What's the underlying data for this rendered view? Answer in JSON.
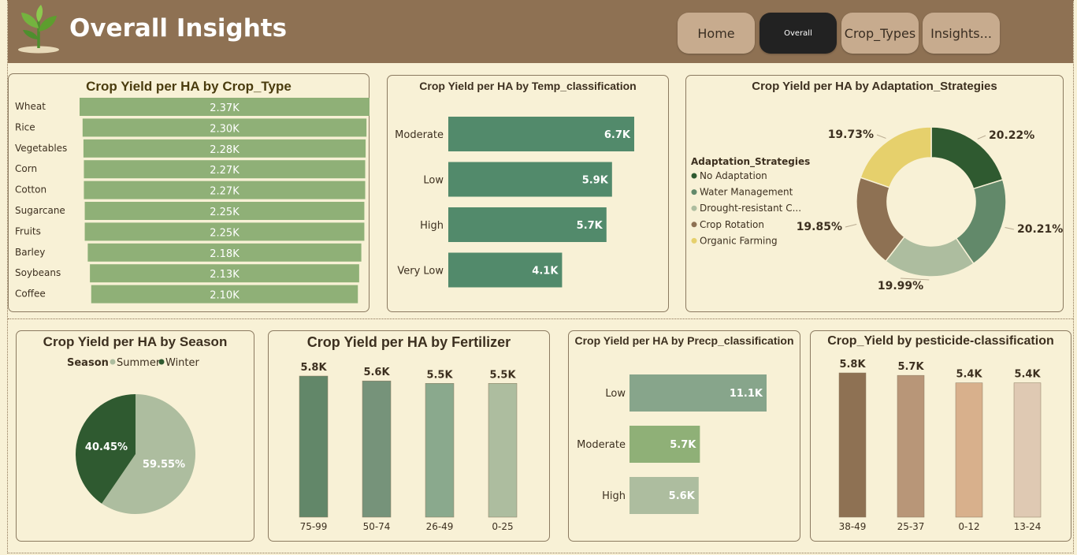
{
  "header": {
    "title": "Overall Insights",
    "nav": [
      "Home",
      "Overall",
      "Crop_Types",
      "Insights..."
    ],
    "active_index": 1
  },
  "colors": {
    "header_bg": "#8e7153",
    "page_bg": "#f8f1d6",
    "crop_bar": "#8fb077",
    "temp_bar": "#528a6b"
  },
  "chart_data": [
    {
      "id": "crop_type",
      "type": "bar",
      "orientation": "horizontal",
      "title": "Crop Yield per HA by Crop_Type",
      "categories": [
        "Wheat",
        "Rice",
        "Vegetables",
        "Corn",
        "Cotton",
        "Sugarcane",
        "Fruits",
        "Barley",
        "Soybeans",
        "Coffee"
      ],
      "values": [
        2370,
        2300,
        2280,
        2270,
        2270,
        2250,
        2250,
        2180,
        2130,
        2100
      ],
      "labels": [
        "2.37K",
        "2.30K",
        "2.28K",
        "2.27K",
        "2.27K",
        "2.25K",
        "2.25K",
        "2.18K",
        "2.13K",
        "2.10K"
      ]
    },
    {
      "id": "temp",
      "type": "bar",
      "orientation": "horizontal",
      "title": "Crop Yield per HA by Temp_classification",
      "categories": [
        "Moderate",
        "Low",
        "High",
        "Very Low"
      ],
      "values": [
        6700,
        5900,
        5700,
        4100
      ],
      "labels": [
        "6.7K",
        "5.9K",
        "5.7K",
        "4.1K"
      ]
    },
    {
      "id": "adaptation",
      "type": "pie",
      "donut": true,
      "title": "Crop Yield per HA by Adaptation_Strategies",
      "legend_title": "Adaptation_Strategies",
      "categories": [
        "No Adaptation",
        "Water Management",
        "Drought-resistant C...",
        "Crop Rotation",
        "Organic Farming"
      ],
      "values": [
        20.22,
        20.21,
        19.99,
        19.85,
        19.73
      ],
      "labels": [
        "20.22%",
        "20.21%",
        "19.99%",
        "19.85%",
        "19.73%"
      ],
      "colors": [
        "#2f5a30",
        "#62896a",
        "#adbd9f",
        "#8e7153",
        "#e6d06c"
      ],
      "legend_position": "left"
    },
    {
      "id": "season",
      "type": "pie",
      "title": "Crop Yield per HA by Season",
      "legend_title": "Season",
      "categories": [
        "Summer",
        "Winter"
      ],
      "values": [
        59.55,
        40.45
      ],
      "labels": [
        "59.55%",
        "40.45%"
      ],
      "colors": [
        "#adbd9f",
        "#2f5a30"
      ],
      "legend_position": "top"
    },
    {
      "id": "fertilizer",
      "type": "bar",
      "orientation": "vertical",
      "title": "Crop Yield per HA by Fertilizer",
      "categories": [
        "75-99",
        "50-74",
        "26-49",
        "0-25"
      ],
      "values": [
        5800,
        5600,
        5500,
        5500
      ],
      "labels": [
        "5.8K",
        "5.6K",
        "5.5K",
        "5.5K"
      ],
      "colors": [
        "#628769",
        "#76937a",
        "#8aa98d",
        "#adbd9f"
      ]
    },
    {
      "id": "precip",
      "type": "bar",
      "orientation": "horizontal",
      "title": "Crop Yield per HA by Precp_classification",
      "categories": [
        "Low",
        "Moderate",
        "High"
      ],
      "values": [
        11100,
        5700,
        5600
      ],
      "labels": [
        "11.1K",
        "5.7K",
        "5.6K"
      ],
      "colors": [
        "#87a58b",
        "#8fb077",
        "#adbd9f"
      ]
    },
    {
      "id": "pesticide",
      "type": "bar",
      "orientation": "vertical",
      "title": "Crop_Yield by pesticide-classification",
      "categories": [
        "38-49",
        "25-37",
        "0-12",
        "13-24"
      ],
      "values": [
        5800,
        5700,
        5400,
        5400
      ],
      "labels": [
        "5.8K",
        "5.7K",
        "5.4K",
        "5.4K"
      ],
      "colors": [
        "#8e7153",
        "#b89678",
        "#d8b08c",
        "#dfc9b3"
      ]
    }
  ]
}
